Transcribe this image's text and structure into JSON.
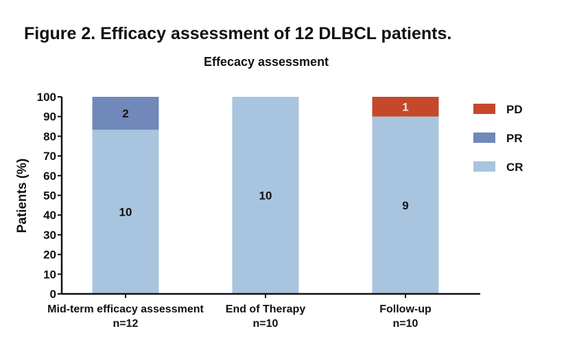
{
  "figure_title": "Figure 2. Efficacy assessment of 12 DLBCL patients.",
  "chart_data": {
    "type": "bar",
    "stacked": true,
    "title": "Effecacy assessment",
    "xlabel": "",
    "ylabel": "Patients  (%)",
    "ylim": [
      0,
      100
    ],
    "yticks": [
      0,
      10,
      20,
      30,
      40,
      50,
      60,
      70,
      80,
      90,
      100
    ],
    "categories": [
      {
        "name": "Mid-term efficacy assessment",
        "n": "n=12"
      },
      {
        "name": "End of Therapy",
        "n": "n=10"
      },
      {
        "name": "Follow-up",
        "n": "n=10"
      }
    ],
    "series": [
      {
        "name": "CR",
        "color": "#a9c4de",
        "counts": [
          10,
          10,
          9
        ],
        "values": [
          83.3,
          100,
          90
        ],
        "labels": [
          "10",
          "10",
          "9"
        ]
      },
      {
        "name": "PR",
        "color": "#7088ba",
        "counts": [
          2,
          0,
          0
        ],
        "values": [
          16.7,
          0,
          0
        ],
        "labels": [
          "2",
          "",
          ""
        ]
      },
      {
        "name": "PD",
        "color": "#c4482b",
        "counts": [
          0,
          0,
          1
        ],
        "values": [
          0,
          0,
          10
        ],
        "labels": [
          "",
          "",
          "1"
        ]
      }
    ],
    "legend": {
      "placement": "right",
      "order": [
        "PD",
        "PR",
        "CR"
      ]
    },
    "grid": false
  }
}
